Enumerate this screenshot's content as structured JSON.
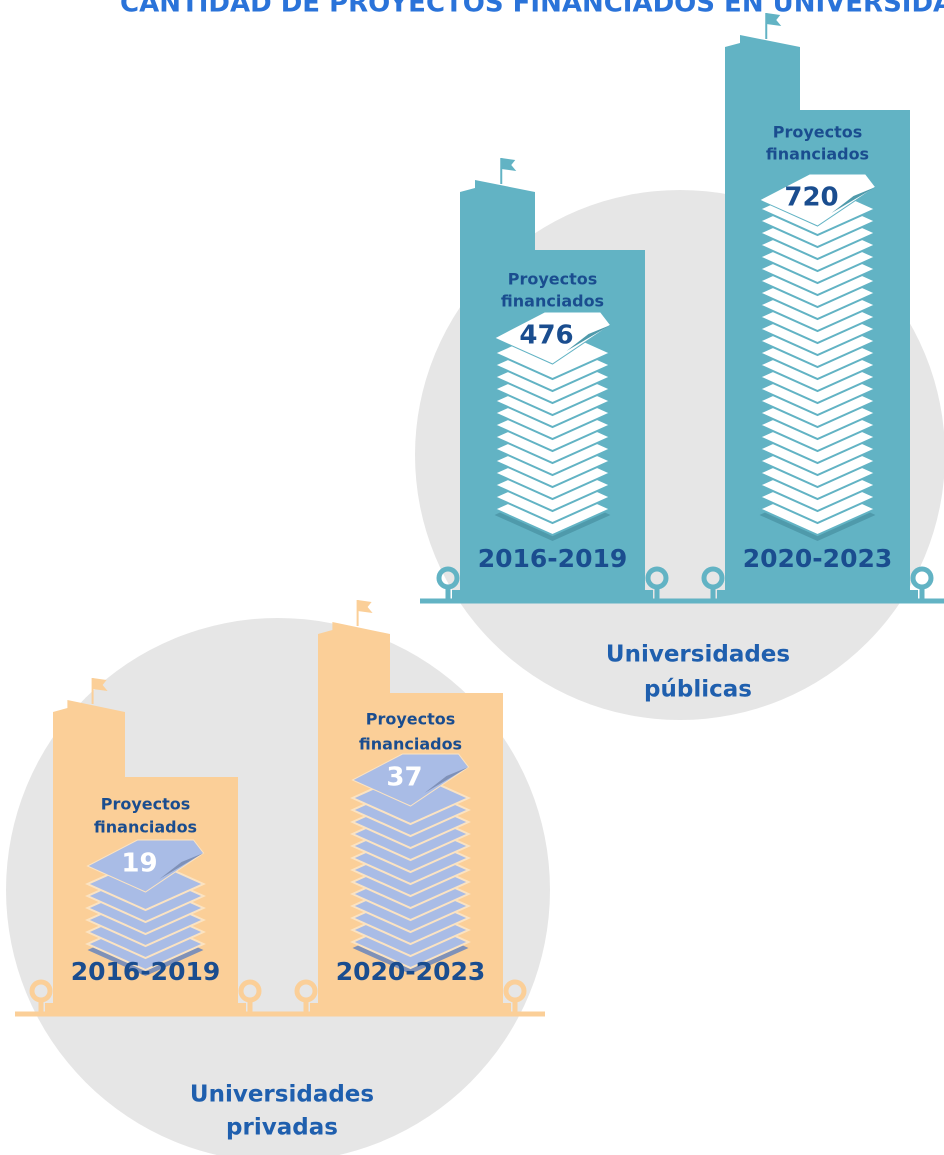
{
  "title": "CANTIDAD DE PROYECTOS FINANCIADOS EN UNIVERSIDADES",
  "groups": [
    {
      "label_lines": [
        "Universidades",
        "públicas"
      ],
      "buildings": [
        {
          "caption_lines": [
            "Proyectos",
            "financiados"
          ],
          "count": 476,
          "period": "2016-2019"
        },
        {
          "caption_lines": [
            "Proyectos",
            "financiados"
          ],
          "count": 720,
          "period": "2020-2023"
        }
      ]
    },
    {
      "label_lines": [
        "Universidades",
        "privadas"
      ],
      "buildings": [
        {
          "caption_lines": [
            "Proyectos",
            "financiados"
          ],
          "count": 19,
          "period": "2016-2019"
        },
        {
          "caption_lines": [
            "Proyectos",
            "financiados"
          ],
          "count": 37,
          "period": "2020-2023"
        }
      ]
    }
  ]
}
